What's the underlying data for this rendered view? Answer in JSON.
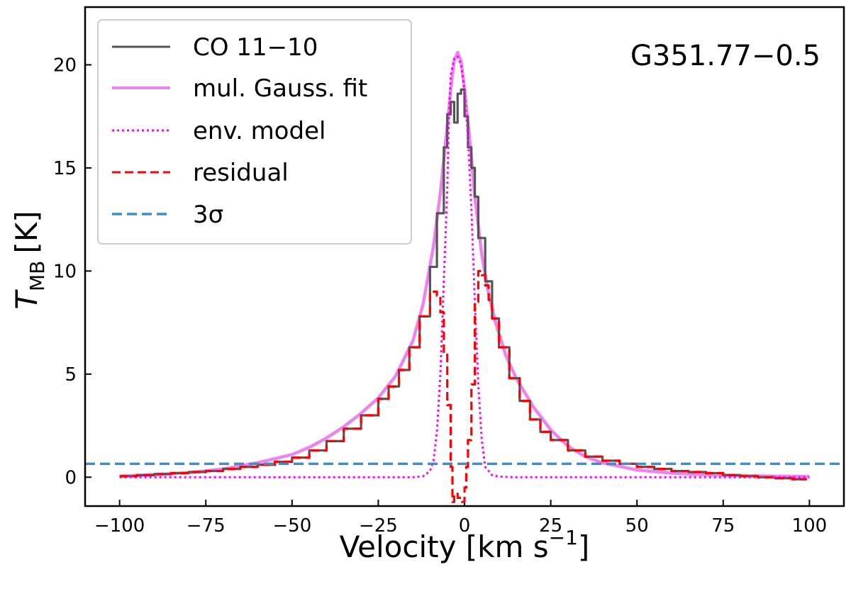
{
  "chart_data": {
    "type": "line",
    "title": "",
    "annotation": "G351.77−0.5",
    "xlabel": "Velocity [km s",
    "xlabel_sup": "−1",
    "xlabel_end": "]",
    "ylabel_main": "T",
    "ylabel_sub": "MB",
    "ylabel_unit": "[K]",
    "xlim": [
      -110,
      110
    ],
    "ylim": [
      -1.4,
      22.8
    ],
    "xticks": [
      -100,
      -75,
      -50,
      -25,
      0,
      25,
      50,
      75,
      100
    ],
    "xtick_labels": [
      "−100",
      "−75",
      "−50",
      "−25",
      "0",
      "25",
      "50",
      "75",
      "100"
    ],
    "yticks": [
      0,
      5,
      10,
      15,
      20
    ],
    "ytick_labels": [
      "0",
      "5",
      "10",
      "15",
      "20"
    ],
    "legend_position": "top-left",
    "series": [
      {
        "name": "CO 11−10",
        "style": "steps",
        "color": "#555555",
        "x": [
          -100,
          -95,
          -90,
          -85,
          -80,
          -75,
          -70,
          -65,
          -60,
          -55,
          -50,
          -45,
          -40,
          -35,
          -30,
          -25,
          -22,
          -19,
          -16,
          -13,
          -10,
          -8,
          -6,
          -5,
          -4,
          -3,
          -2,
          -1,
          0,
          1,
          2,
          3,
          4,
          6,
          8,
          10,
          13,
          16,
          19,
          22,
          25,
          30,
          35,
          40,
          45,
          50,
          55,
          60,
          65,
          70,
          75,
          80,
          85,
          90,
          95,
          99
        ],
        "y": [
          0.05,
          0.1,
          0.15,
          0.2,
          0.25,
          0.3,
          0.4,
          0.5,
          0.6,
          0.75,
          0.95,
          1.3,
          1.75,
          2.35,
          3.0,
          3.8,
          4.4,
          5.2,
          6.3,
          7.8,
          10.2,
          12.8,
          16.0,
          17.6,
          18.2,
          17.2,
          18.6,
          18.8,
          17.5,
          16.0,
          15.0,
          13.6,
          11.6,
          9.5,
          7.7,
          6.3,
          4.8,
          3.7,
          2.8,
          2.2,
          1.8,
          1.3,
          1.0,
          0.8,
          0.65,
          0.5,
          0.4,
          0.3,
          0.25,
          0.2,
          0.1,
          0.05,
          0.0,
          -0.05,
          -0.1,
          -0.15
        ]
      },
      {
        "name": "mul. Gauss. fit",
        "style": "line",
        "color": "#ee82ee",
        "x": [
          -100,
          -90,
          -80,
          -70,
          -60,
          -50,
          -45,
          -40,
          -35,
          -30,
          -25,
          -20,
          -15,
          -12,
          -9,
          -7,
          -5,
          -4,
          -3,
          -2,
          -1,
          0,
          1,
          2,
          3,
          5,
          7,
          9,
          12,
          15,
          20,
          25,
          30,
          35,
          40,
          50,
          60,
          70,
          80,
          90,
          100
        ],
        "y": [
          0.05,
          0.12,
          0.22,
          0.4,
          0.7,
          1.1,
          1.45,
          1.9,
          2.45,
          3.1,
          3.85,
          4.9,
          6.6,
          8.4,
          11.2,
          13.8,
          17.0,
          18.8,
          20.2,
          20.6,
          20.2,
          18.8,
          17.2,
          15.5,
          13.6,
          10.8,
          8.9,
          7.5,
          5.9,
          4.8,
          3.4,
          2.3,
          1.5,
          1.0,
          0.7,
          0.35,
          0.2,
          0.12,
          0.08,
          0.05,
          0.03
        ]
      },
      {
        "name": "env. model",
        "style": "dotted",
        "color": "#ff00ff",
        "x": [
          -100,
          -60,
          -30,
          -15,
          -12,
          -10,
          -9,
          -8,
          -7,
          -6,
          -5,
          -4.5,
          -4,
          -3,
          -2,
          -1,
          0,
          1,
          2,
          3,
          4,
          5,
          6,
          8,
          10,
          15,
          40,
          100
        ],
        "y": [
          0,
          0,
          0,
          0,
          0.05,
          0.3,
          0.8,
          2.2,
          5.0,
          9.5,
          14.0,
          17.5,
          19.5,
          20.3,
          20.4,
          20.0,
          18.8,
          16.5,
          13.0,
          8.5,
          4.5,
          1.8,
          0.5,
          0.1,
          0.03,
          0,
          0,
          0
        ]
      },
      {
        "name": "residual",
        "style": "dashed",
        "color": "#ff0000",
        "x": [
          -100,
          -95,
          -90,
          -85,
          -80,
          -75,
          -70,
          -65,
          -60,
          -55,
          -50,
          -45,
          -40,
          -35,
          -30,
          -25,
          -22,
          -19,
          -16,
          -13,
          -10,
          -8,
          -7,
          -6,
          -5,
          -4,
          -3.5,
          -3,
          -2,
          -1,
          0,
          0.5,
          1,
          2,
          3,
          4,
          5,
          6,
          7,
          8,
          10,
          13,
          16,
          19,
          22,
          25,
          30,
          35,
          40,
          45,
          50,
          55,
          60,
          65,
          70,
          75,
          80,
          85,
          90,
          95,
          99
        ],
        "y": [
          0.05,
          0.1,
          0.15,
          0.2,
          0.25,
          0.3,
          0.4,
          0.5,
          0.6,
          0.75,
          0.95,
          1.3,
          1.75,
          2.35,
          3.0,
          3.8,
          4.4,
          5.2,
          6.3,
          7.8,
          9.0,
          8.8,
          8.0,
          6.0,
          3.5,
          0.5,
          -1.2,
          -0.8,
          -1.0,
          -1.2,
          -0.5,
          0.5,
          1.8,
          4.5,
          8.5,
          10.0,
          9.8,
          9.3,
          8.6,
          7.7,
          6.3,
          4.8,
          3.7,
          2.8,
          2.2,
          1.8,
          1.3,
          1.0,
          0.8,
          0.65,
          0.5,
          0.4,
          0.3,
          0.25,
          0.2,
          0.1,
          0.05,
          0.0,
          -0.05,
          -0.1,
          -0.15
        ]
      },
      {
        "name": "3σ",
        "style": "hline-dashed",
        "color": "#3a8fc6",
        "y": 0.65
      }
    ]
  }
}
